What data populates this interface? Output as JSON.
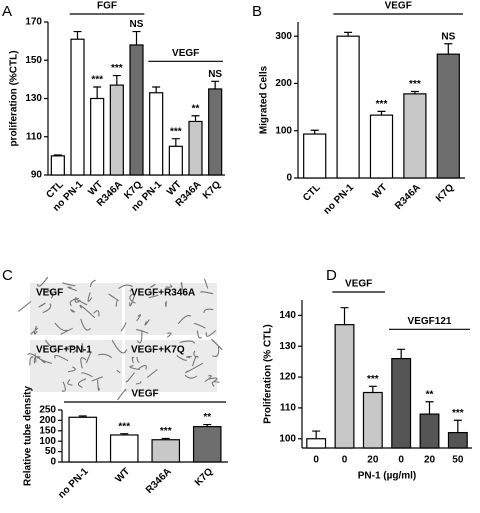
{
  "chart_data": [
    {
      "type": "bar",
      "panel": "A",
      "ylabel": "proliferation (%CTL)",
      "groups": [
        "FGF",
        "VEGF"
      ],
      "categories": [
        "CTL",
        "no PN-1",
        "WT",
        "R346A",
        "K7Q",
        "no PN-1",
        "WT",
        "R346A",
        "K7Q"
      ],
      "values": [
        100,
        161,
        130,
        137,
        158,
        133,
        105,
        118,
        135
      ],
      "errors": [
        0.5,
        4,
        6,
        5,
        7,
        3,
        4,
        3,
        4
      ],
      "colors": [
        "#ffffff",
        "#ffffff",
        "#ffffff",
        "#c8c8c8",
        "#6e6e6e",
        "#ffffff",
        "#ffffff",
        "#c8c8c8",
        "#6e6e6e"
      ],
      "significance": [
        null,
        null,
        "***",
        "***",
        "NS",
        null,
        "***",
        "**",
        "NS"
      ],
      "ylim": [
        90,
        170
      ],
      "yticks": [
        90,
        110,
        130,
        150,
        170
      ]
    },
    {
      "type": "bar",
      "panel": "B",
      "ylabel": "Migrated Cells",
      "groups": [
        "VEGF"
      ],
      "categories": [
        "CTL",
        "no PN-1",
        "WT",
        "R346A",
        "K7Q"
      ],
      "values": [
        93,
        300,
        133,
        178,
        262
      ],
      "errors": [
        8,
        8,
        8,
        5,
        22
      ],
      "colors": [
        "#ffffff",
        "#ffffff",
        "#ffffff",
        "#c8c8c8",
        "#6e6e6e"
      ],
      "significance": [
        null,
        null,
        "***",
        "***",
        "NS"
      ],
      "ylim": [
        0,
        330
      ],
      "yticks": [
        0,
        100,
        200,
        300
      ]
    },
    {
      "type": "bar",
      "panel": "C",
      "ylabel": "Relative tube density",
      "groups": [
        "VEGF"
      ],
      "images": [
        "VEGF",
        "VEGF+R346A",
        "VEGF+PN-1",
        "VEGF+K7Q"
      ],
      "categories": [
        "no PN-1",
        "WT",
        "R346A",
        "K7Q"
      ],
      "values": [
        215,
        130,
        107,
        170
      ],
      "errors": [
        6,
        6,
        6,
        10
      ],
      "colors": [
        "#ffffff",
        "#ffffff",
        "#c8c8c8",
        "#6e6e6e"
      ],
      "significance": [
        null,
        "***",
        "***",
        "**"
      ],
      "ylim": [
        0,
        250
      ],
      "yticks": [
        0,
        50,
        100,
        150,
        200,
        250
      ]
    },
    {
      "type": "bar",
      "panel": "D",
      "ylabel": "Proliferation (% CTL)",
      "xlabel": "PN-1 (µg/ml)",
      "groups": [
        "VEGF",
        "VEGF121"
      ],
      "categories": [
        "0",
        "0",
        "20",
        "0",
        "20",
        "50"
      ],
      "values": [
        100,
        137,
        115,
        126,
        108,
        102
      ],
      "errors": [
        2.5,
        5.5,
        2,
        3,
        4,
        4
      ],
      "colors": [
        "#ffffff",
        "#c8c8c8",
        "#c8c8c8",
        "#555555",
        "#555555",
        "#555555"
      ],
      "significance": [
        null,
        null,
        "***",
        null,
        "**",
        "***"
      ],
      "ylim": [
        97,
        145
      ],
      "yticks": [
        100,
        110,
        120,
        130,
        140
      ]
    }
  ]
}
